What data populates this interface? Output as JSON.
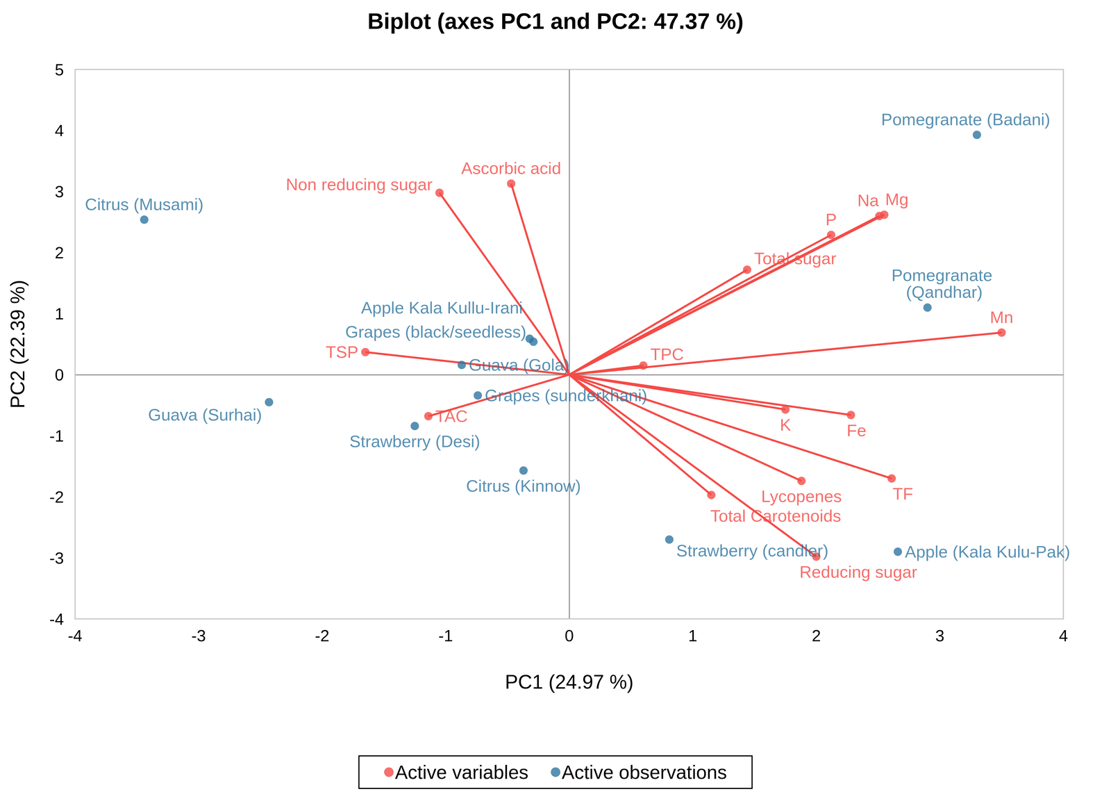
{
  "chart_data": {
    "type": "scatter",
    "title": "Biplot (axes PC1 and PC2: 47.37 %)",
    "x_label": "PC1 (24.97 %)",
    "y_label": "PC2 (22.39 %)",
    "xlim": [
      -4,
      4
    ],
    "xticks": [
      -4,
      -3,
      -2,
      -1,
      0,
      1,
      2,
      3,
      4
    ],
    "ylim": [
      -4,
      5
    ],
    "yticks": [
      -4,
      -3,
      -2,
      -1,
      0,
      1,
      2,
      3,
      4,
      5
    ],
    "grid": false,
    "legend": "bottom",
    "series": [
      {
        "name": "Active variables",
        "color": "#f44b47",
        "type": "vector",
        "marker": "circle",
        "labels": [
          "Ascorbic acid",
          "Non reducing sugar",
          "P",
          "Na",
          "Mg",
          "Total sugar",
          "Mn",
          "TPC",
          "K",
          "Fe",
          "TF",
          "Lycopenes",
          "Total Carotenoids",
          "Reducing sugar",
          "TSP",
          "TAC"
        ],
        "x": [
          -0.47,
          -1.05,
          2.12,
          2.51,
          2.55,
          1.44,
          3.5,
          0.6,
          1.75,
          2.28,
          2.61,
          1.88,
          1.15,
          2.0,
          -1.65,
          -1.14
        ],
        "y": [
          3.13,
          2.98,
          2.29,
          2.6,
          2.62,
          1.72,
          0.69,
          0.15,
          -0.57,
          -0.66,
          -1.7,
          -1.74,
          -1.97,
          -2.98,
          0.37,
          -0.68
        ]
      },
      {
        "name": "Active observations",
        "color": "#2f76a0",
        "type": "scatter",
        "marker": "circle",
        "labels": [
          "Pomegranate (Badani)",
          "Citrus (Musami)",
          "Pomegranate (Qandhar)",
          "Apple Kala Kullu-Irani",
          "Grapes (black/seedless)",
          "Guava (Gola)",
          "Grapes (sunderkhani)",
          "Guava (Surhai)",
          "Strawberry (Desi)",
          "Citrus (Kinnow)",
          "Strawberry (candler)",
          "Apple (Kala Kulu-Pak)"
        ],
        "x": [
          3.3,
          -3.44,
          2.9,
          -0.32,
          -0.29,
          -0.87,
          -0.74,
          -2.43,
          -1.25,
          -0.37,
          0.81,
          2.66
        ],
        "y": [
          3.93,
          2.54,
          1.1,
          0.59,
          0.54,
          0.16,
          -0.34,
          -0.45,
          -0.84,
          -1.57,
          -2.7,
          -2.9
        ]
      }
    ]
  }
}
